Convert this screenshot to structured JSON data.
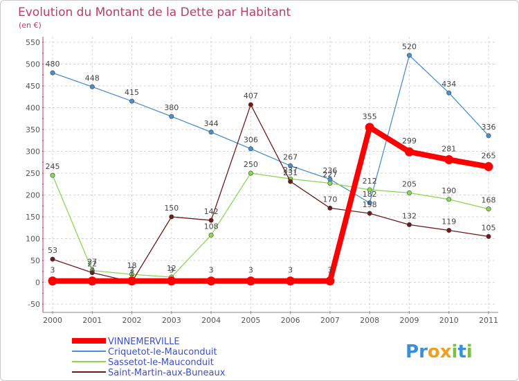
{
  "chart_data": {
    "type": "line",
    "title": "Evolution du Montant de la Dette par Habitant",
    "subtitle": "(en €)",
    "x": [
      "2000",
      "2001",
      "2002",
      "2003",
      "2004",
      "2005",
      "2006",
      "2007",
      "2008",
      "2009",
      "2010",
      "2011"
    ],
    "ylim": [
      -50,
      550
    ],
    "yticks": [
      -50,
      0,
      50,
      100,
      150,
      200,
      250,
      300,
      350,
      400,
      450,
      500,
      550
    ],
    "grid": true,
    "legend_position": "bottom-left",
    "series": [
      {
        "name": "VINNEMERVILLE",
        "color": "#ff0000",
        "values": [
          3,
          3,
          3,
          3,
          3,
          3,
          3,
          3,
          355,
          299,
          281,
          265
        ]
      },
      {
        "name": "Criquetot-le-Mauconduit",
        "color": "#4a90cd",
        "values": [
          480,
          448,
          415,
          380,
          344,
          306,
          267,
          236,
          182,
          520,
          434,
          336
        ]
      },
      {
        "name": "Sassetot-le-Mauconduit",
        "color": "#8ad852",
        "values": [
          245,
          27,
          18,
          12,
          108,
          250,
          237,
          227,
          212,
          205,
          190,
          168
        ]
      },
      {
        "name": "Saint-Martin-aux-Buneaux",
        "color": "#6e1a1a",
        "values": [
          53,
          22,
          1,
          150,
          142,
          407,
          231,
          170,
          158,
          132,
          119,
          105
        ]
      }
    ]
  },
  "logo": {
    "text": "Proxiti",
    "letters": [
      "P",
      "r",
      "o",
      "x",
      "i",
      "t",
      "i"
    ],
    "colors": [
      "#3a8fd8",
      "#3a8fd8",
      "#f0a020",
      "#f0a020",
      "#7cc040",
      "#3a8fd8",
      "#7cc040"
    ]
  }
}
